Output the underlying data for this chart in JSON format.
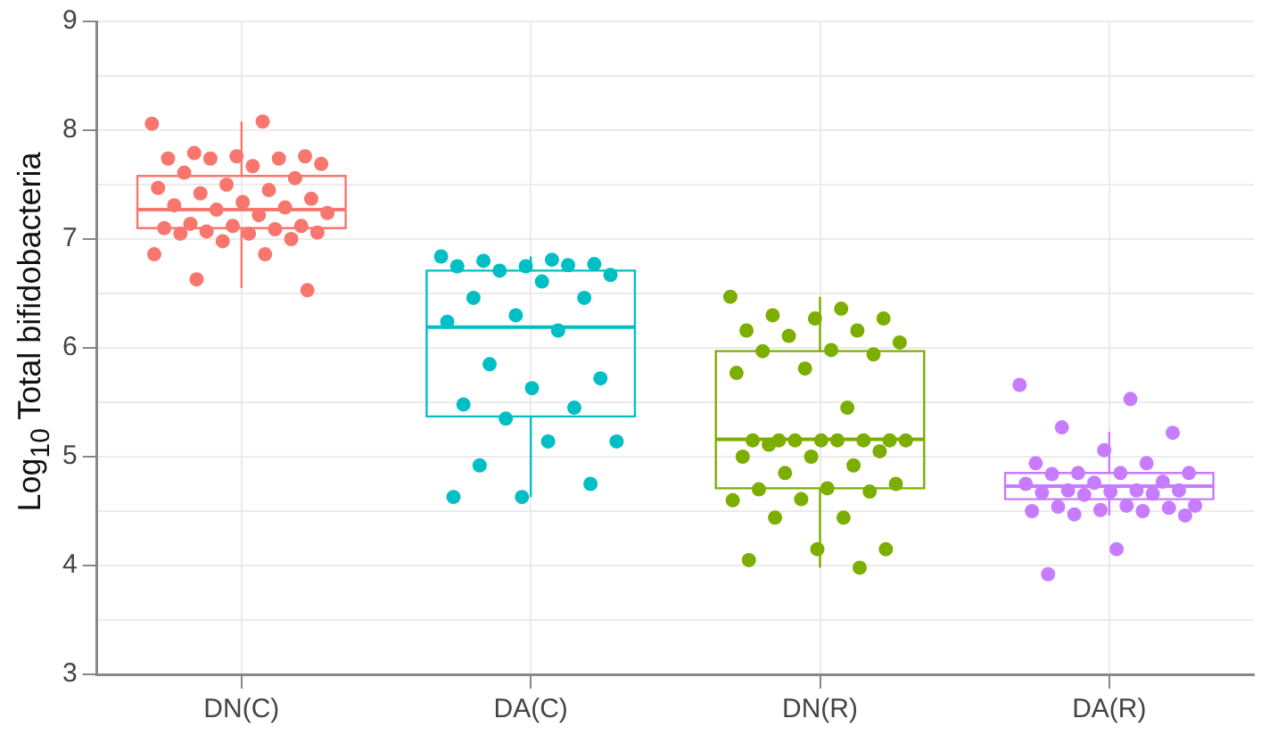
{
  "chart_data": {
    "type": "box",
    "ylabel": "Log$_{10}$ Total bifidobacteria",
    "categories": [
      "DN(C)",
      "DA(C)",
      "DN(R)",
      "DA(R)"
    ],
    "colors": [
      "#f8766d",
      "#00bfc4",
      "#7cae00",
      "#c77cff"
    ],
    "boxes": [
      {
        "low": 6.55,
        "q1": 7.1,
        "median": 7.27,
        "q3": 7.58,
        "high": 8.08
      },
      {
        "low": 4.63,
        "q1": 5.37,
        "median": 6.19,
        "q3": 6.71,
        "high": 6.84
      },
      {
        "low": 3.98,
        "q1": 4.71,
        "median": 5.16,
        "q3": 5.97,
        "high": 6.47
      },
      {
        "low": 4.46,
        "q1": 4.61,
        "median": 4.73,
        "q3": 4.85,
        "high": 5.23
      }
    ],
    "series": [
      {
        "type": "scatter",
        "color": "#f8766d",
        "x": [
          "DN(C)",
          "DN(C)",
          "DN(C)",
          "DN(C)",
          "DN(C)",
          "DN(C)",
          "DN(C)",
          "DN(C)",
          "DN(C)",
          "DN(C)",
          "DN(C)",
          "DN(C)",
          "DN(C)",
          "DN(C)",
          "DN(C)",
          "DN(C)",
          "DN(C)",
          "DN(C)",
          "DN(C)",
          "DN(C)",
          "DN(C)",
          "DN(C)",
          "DN(C)",
          "DN(C)",
          "DN(C)",
          "DN(C)",
          "DN(C)",
          "DN(C)",
          "DN(C)",
          "DN(C)",
          "DN(C)",
          "DN(C)",
          "DN(C)",
          "DN(C)",
          "DN(C)",
          "DN(C)",
          "DN(C)",
          "DN(C)"
        ],
        "values": [
          8.06,
          8.08,
          7.79,
          7.76,
          7.76,
          7.74,
          7.74,
          7.74,
          7.69,
          7.67,
          7.61,
          7.56,
          7.5,
          7.47,
          7.45,
          7.42,
          7.37,
          7.34,
          7.31,
          7.29,
          7.27,
          7.24,
          7.22,
          7.14,
          7.12,
          7.12,
          7.1,
          7.09,
          7.07,
          7.06,
          7.05,
          7.05,
          7.0,
          6.98,
          6.86,
          6.86,
          6.63,
          6.53
        ]
      },
      {
        "type": "scatter",
        "color": "#00bfc4",
        "x": [
          "DA(C)",
          "DA(C)",
          "DA(C)",
          "DA(C)",
          "DA(C)",
          "DA(C)",
          "DA(C)",
          "DA(C)",
          "DA(C)",
          "DA(C)",
          "DA(C)",
          "DA(C)",
          "DA(C)",
          "DA(C)",
          "DA(C)",
          "DA(C)",
          "DA(C)",
          "DA(C)",
          "DA(C)",
          "DA(C)",
          "DA(C)",
          "DA(C)",
          "DA(C)",
          "DA(C)",
          "DA(C)",
          "DA(C)",
          "DA(C)"
        ],
        "values": [
          6.84,
          6.81,
          6.8,
          6.77,
          6.75,
          6.75,
          6.76,
          6.71,
          6.67,
          6.61,
          6.46,
          6.46,
          6.3,
          6.24,
          6.16,
          5.85,
          5.72,
          5.63,
          5.48,
          5.45,
          5.35,
          5.14,
          5.14,
          4.92,
          4.75,
          4.63,
          4.63
        ]
      },
      {
        "type": "scatter",
        "color": "#7cae00",
        "x": [
          "DN(R)",
          "DN(R)",
          "DN(R)",
          "DN(R)",
          "DN(R)",
          "DN(R)",
          "DN(R)",
          "DN(R)",
          "DN(R)",
          "DN(R)",
          "DN(R)",
          "DN(R)",
          "DN(R)",
          "DN(R)",
          "DN(R)",
          "DN(R)",
          "DN(R)",
          "DN(R)",
          "DN(R)",
          "DN(R)",
          "DN(R)",
          "DN(R)",
          "DN(R)",
          "DN(R)",
          "DN(R)",
          "DN(R)",
          "DN(R)",
          "DN(R)",
          "DN(R)",
          "DN(R)",
          "DN(R)",
          "DN(R)",
          "DN(R)",
          "DN(R)",
          "DN(R)",
          "DN(R)",
          "DN(R)",
          "DN(R)",
          "DN(R)",
          "DN(R)",
          "DN(R)"
        ],
        "values": [
          6.47,
          6.36,
          6.3,
          6.27,
          6.27,
          6.16,
          6.16,
          6.11,
          6.05,
          5.98,
          5.97,
          5.94,
          5.81,
          5.77,
          5.45,
          5.15,
          5.15,
          5.15,
          5.15,
          5.15,
          5.15,
          5.15,
          5.15,
          5.11,
          5.05,
          5.0,
          5.0,
          4.92,
          4.85,
          4.75,
          4.71,
          4.7,
          4.68,
          4.61,
          4.6,
          4.44,
          4.44,
          4.15,
          4.15,
          4.05,
          3.98
        ]
      },
      {
        "type": "scatter",
        "color": "#c77cff",
        "x": [
          "DA(R)",
          "DA(R)",
          "DA(R)",
          "DA(R)",
          "DA(R)",
          "DA(R)",
          "DA(R)",
          "DA(R)",
          "DA(R)",
          "DA(R)",
          "DA(R)",
          "DA(R)",
          "DA(R)",
          "DA(R)",
          "DA(R)",
          "DA(R)",
          "DA(R)",
          "DA(R)",
          "DA(R)",
          "DA(R)",
          "DA(R)",
          "DA(R)",
          "DA(R)",
          "DA(R)",
          "DA(R)",
          "DA(R)",
          "DA(R)",
          "DA(R)",
          "DA(R)",
          "DA(R)",
          "DA(R)",
          "DA(R)"
        ],
        "values": [
          5.66,
          5.53,
          5.27,
          5.22,
          5.06,
          4.94,
          4.94,
          4.85,
          4.85,
          4.85,
          4.84,
          4.77,
          4.76,
          4.75,
          4.69,
          4.69,
          4.69,
          4.68,
          4.67,
          4.66,
          4.65,
          4.55,
          4.55,
          4.54,
          4.53,
          4.51,
          4.5,
          4.5,
          4.47,
          4.46,
          4.15,
          3.92
        ]
      }
    ],
    "ylim": [
      3,
      9
    ],
    "yticks": [
      3,
      {
        "value": 3.5,
        "label": null
      },
      4,
      {
        "value": 4.5,
        "label": null
      },
      5,
      {
        "value": 5.5,
        "label": null
      },
      6,
      {
        "value": 6.5,
        "label": null
      },
      7,
      {
        "value": 7.5,
        "label": null
      },
      8,
      {
        "value": 8.5,
        "label": null
      },
      9
    ],
    "grid": true,
    "legend": false,
    "marker": "circle"
  }
}
